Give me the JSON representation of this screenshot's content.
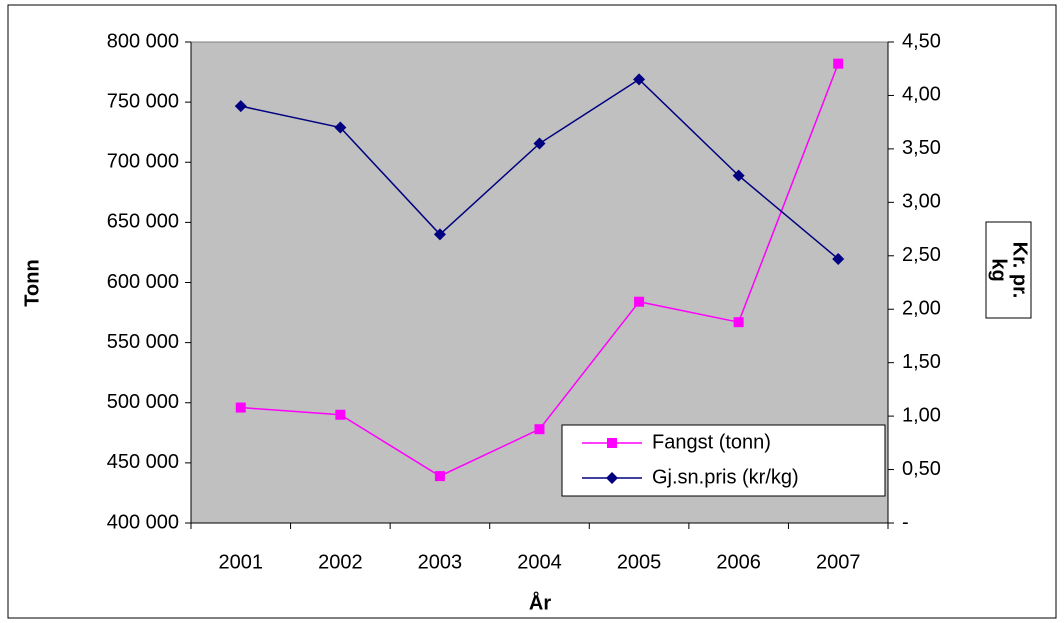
{
  "chart_data": {
    "type": "line",
    "categories": [
      "2001",
      "2002",
      "2003",
      "2004",
      "2005",
      "2006",
      "2007"
    ],
    "series": [
      {
        "name": "Fangst (tonn)",
        "color": "#ff00ff",
        "marker": "square",
        "values": [
          496000,
          490000,
          439000,
          478000,
          584000,
          567000,
          782000
        ]
      },
      {
        "name": "Gj.sn.pris (kr/kg)",
        "color": "#000080",
        "marker": "diamond",
        "axis": "y2",
        "values": [
          3.9,
          3.7,
          2.7,
          3.55,
          4.15,
          3.25,
          2.47
        ]
      }
    ],
    "ylim": [
      400000,
      800000
    ],
    "yticks": [
      {
        "value": 400000,
        "label": "400 000"
      },
      {
        "value": 450000,
        "label": "450 000"
      },
      {
        "value": 500000,
        "label": "500 000"
      },
      {
        "value": 550000,
        "label": "550 000"
      },
      {
        "value": 600000,
        "label": "600 000"
      },
      {
        "value": 650000,
        "label": "650 000"
      },
      {
        "value": 700000,
        "label": "700 000"
      },
      {
        "value": 750000,
        "label": "750 000"
      },
      {
        "value": 800000,
        "label": "800 000"
      }
    ],
    "y2lim": [
      0,
      4.5
    ],
    "y2ticks": [
      {
        "value": 0,
        "label": "-"
      },
      {
        "value": 0.5,
        "label": "0,50"
      },
      {
        "value": 1,
        "label": "1,00"
      },
      {
        "value": 1.5,
        "label": "1,50"
      },
      {
        "value": 2,
        "label": "2,00"
      },
      {
        "value": 2.5,
        "label": "2,50"
      },
      {
        "value": 3,
        "label": "3,00"
      },
      {
        "value": 3.5,
        "label": "3,50"
      },
      {
        "value": 4,
        "label": "4,00"
      },
      {
        "value": 4.5,
        "label": "4,50"
      }
    ],
    "xlabel": "År",
    "ylabel": "Tonn",
    "y2label": [
      "Kr. pr.",
      "kg"
    ],
    "legend": "lower right",
    "plot_background": "#c0c0c0"
  }
}
